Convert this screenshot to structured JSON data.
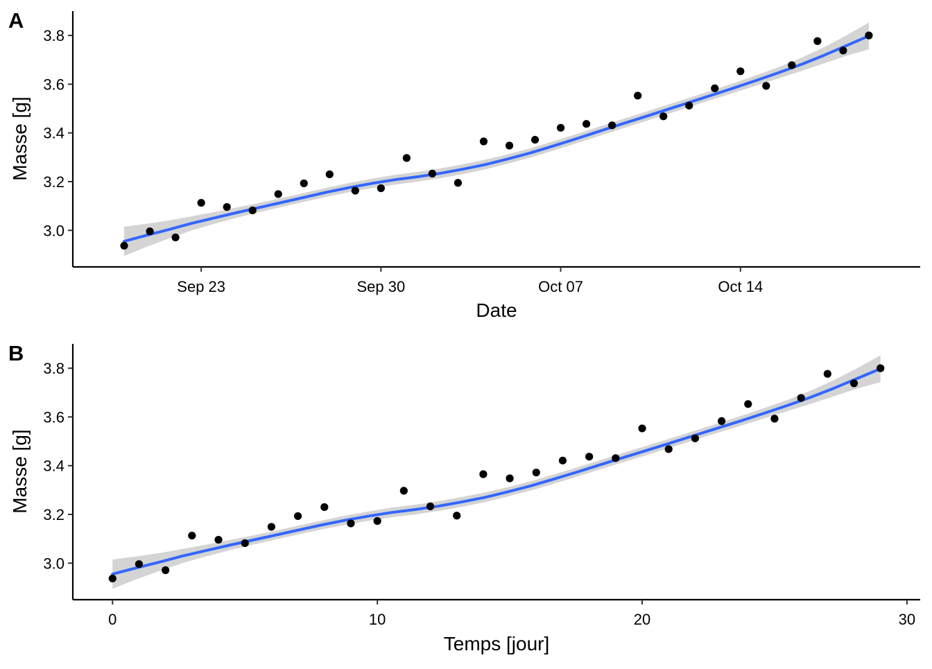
{
  "figure": {
    "panels": [
      {
        "tag": "A",
        "xlabel": "Date",
        "ylabel": "Masse  [g]"
      },
      {
        "tag": "B",
        "xlabel": "Temps  [jour]",
        "ylabel": "Masse  [g]"
      }
    ]
  },
  "chart_data": [
    {
      "type": "scatter",
      "title": "",
      "panel_tag": "A",
      "xlabel": "Date",
      "ylabel": "Masse  [g]",
      "x_type": "date",
      "x": [
        "2019-09-20",
        "2019-09-21",
        "2019-09-22",
        "2019-09-23",
        "2019-09-24",
        "2019-09-25",
        "2019-09-26",
        "2019-09-27",
        "2019-09-28",
        "2019-09-29",
        "2019-09-30",
        "2019-10-01",
        "2019-10-02",
        "2019-10-03",
        "2019-10-04",
        "2019-10-05",
        "2019-10-06",
        "2019-10-07",
        "2019-10-08",
        "2019-10-09",
        "2019-10-10",
        "2019-10-11",
        "2019-10-12",
        "2019-10-13",
        "2019-10-14",
        "2019-10-15",
        "2019-10-16",
        "2019-10-17",
        "2019-10-18",
        "2019-10-19"
      ],
      "y": [
        2.937,
        2.996,
        2.971,
        3.113,
        3.096,
        3.082,
        3.149,
        3.193,
        3.23,
        3.163,
        3.173,
        3.297,
        3.233,
        3.195,
        3.365,
        3.348,
        3.372,
        3.421,
        3.437,
        3.431,
        3.553,
        3.468,
        3.512,
        3.583,
        3.653,
        3.593,
        3.678,
        3.777,
        3.738,
        3.8
      ],
      "x_ticks": [
        "2019-09-23",
        "2019-09-30",
        "2019-10-07",
        "2019-10-14"
      ],
      "x_tick_labels": [
        "Sep 23",
        "Sep 30",
        "Oct 07",
        "Oct 14"
      ],
      "xlim": [
        "2019-09-18",
        "2019-10-21"
      ],
      "ylim": [
        2.85,
        3.9
      ],
      "y_ticks": [
        3.0,
        3.2,
        3.4,
        3.6,
        3.8
      ],
      "y_tick_labels": [
        "3.0",
        "3.2",
        "3.4",
        "3.6",
        "3.8"
      ],
      "smooth": {
        "method": "loess",
        "fit": [
          2.955,
          2.98,
          3.004,
          3.029,
          3.051,
          3.073,
          3.094,
          3.115,
          3.136,
          3.157,
          3.176,
          3.193,
          3.208,
          3.22,
          3.234,
          3.251,
          3.27,
          3.293,
          3.318,
          3.346,
          3.375,
          3.405,
          3.435,
          3.464,
          3.494,
          3.524,
          3.554,
          3.584,
          3.615,
          3.647,
          3.681,
          3.718,
          3.758,
          3.798
        ],
        "fit_x_days": [
          0,
          0.879,
          1.758,
          2.636,
          3.515,
          4.394,
          5.273,
          6.152,
          7.03,
          7.909,
          8.788,
          9.667,
          10.545,
          11.424,
          12.303,
          13.182,
          14.061,
          14.939,
          15.818,
          16.697,
          17.576,
          18.455,
          19.333,
          20.212,
          21.091,
          21.97,
          22.848,
          23.727,
          24.606,
          25.485,
          26.364,
          27.242,
          28.121,
          29
        ],
        "se_halfwidth": [
          0.06,
          0.047,
          0.037,
          0.029,
          0.024,
          0.021,
          0.019,
          0.018,
          0.018,
          0.018,
          0.019,
          0.019,
          0.02,
          0.02,
          0.02,
          0.02,
          0.02,
          0.019,
          0.019,
          0.019,
          0.019,
          0.019,
          0.019,
          0.019,
          0.019,
          0.019,
          0.019,
          0.02,
          0.021,
          0.023,
          0.027,
          0.033,
          0.042,
          0.055
        ],
        "color": "#3366FF",
        "band_color": "#CCCCCC"
      },
      "point_color": "#000000",
      "grid": false,
      "legend": "none"
    },
    {
      "type": "scatter",
      "title": "",
      "panel_tag": "B",
      "xlabel": "Temps  [jour]",
      "ylabel": "Masse  [g]",
      "x": [
        0,
        1,
        2,
        3,
        4,
        5,
        6,
        7,
        8,
        9,
        10,
        11,
        12,
        13,
        14,
        15,
        16,
        17,
        18,
        19,
        20,
        21,
        22,
        23,
        24,
        25,
        26,
        27,
        28,
        29
      ],
      "y": [
        2.937,
        2.996,
        2.971,
        3.113,
        3.096,
        3.082,
        3.149,
        3.193,
        3.23,
        3.163,
        3.173,
        3.297,
        3.233,
        3.195,
        3.365,
        3.348,
        3.372,
        3.421,
        3.437,
        3.431,
        3.553,
        3.468,
        3.512,
        3.583,
        3.653,
        3.593,
        3.678,
        3.777,
        3.738,
        3.8
      ],
      "x_ticks": [
        0,
        10,
        20,
        30
      ],
      "x_tick_labels": [
        "0",
        "10",
        "20",
        "30"
      ],
      "xlim": [
        -1.5,
        30.5
      ],
      "ylim": [
        2.85,
        3.9
      ],
      "y_ticks": [
        3.0,
        3.2,
        3.4,
        3.6,
        3.8
      ],
      "y_tick_labels": [
        "3.0",
        "3.2",
        "3.4",
        "3.6",
        "3.8"
      ],
      "smooth": {
        "method": "loess",
        "fit": [
          2.955,
          2.98,
          3.004,
          3.029,
          3.051,
          3.073,
          3.094,
          3.115,
          3.136,
          3.157,
          3.176,
          3.193,
          3.208,
          3.22,
          3.234,
          3.251,
          3.27,
          3.293,
          3.318,
          3.346,
          3.375,
          3.405,
          3.435,
          3.464,
          3.494,
          3.524,
          3.554,
          3.584,
          3.615,
          3.647,
          3.681,
          3.718,
          3.758,
          3.798
        ],
        "fit_x": [
          0,
          0.879,
          1.758,
          2.636,
          3.515,
          4.394,
          5.273,
          6.152,
          7.03,
          7.909,
          8.788,
          9.667,
          10.545,
          11.424,
          12.303,
          13.182,
          14.061,
          14.939,
          15.818,
          16.697,
          17.576,
          18.455,
          19.333,
          20.212,
          21.091,
          21.97,
          22.848,
          23.727,
          24.606,
          25.485,
          26.364,
          27.242,
          28.121,
          29
        ],
        "se_halfwidth": [
          0.06,
          0.047,
          0.037,
          0.029,
          0.024,
          0.021,
          0.019,
          0.018,
          0.018,
          0.018,
          0.019,
          0.019,
          0.02,
          0.02,
          0.02,
          0.02,
          0.02,
          0.019,
          0.019,
          0.019,
          0.019,
          0.019,
          0.019,
          0.019,
          0.019,
          0.019,
          0.019,
          0.02,
          0.021,
          0.023,
          0.027,
          0.033,
          0.042,
          0.055
        ],
        "color": "#3366FF",
        "band_color": "#CCCCCC"
      },
      "point_color": "#000000",
      "grid": false,
      "legend": "none"
    }
  ]
}
